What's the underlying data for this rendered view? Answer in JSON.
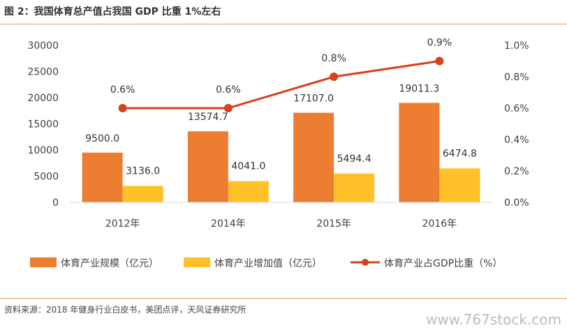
{
  "figure": {
    "title": "图 2：我国体育总产值占我国 GDP 比重 1%左右",
    "source": "资料来源：2018 年健身行业白皮书，美团点评，天风证券研究所",
    "watermark": "www.767stock.com"
  },
  "colors": {
    "bar1": "#ed7d31",
    "bar2": "#ffc02a",
    "line": "#d9401e",
    "rule": "#e2a15a"
  },
  "chart_data": {
    "type": "bar",
    "categories": [
      "2012年",
      "2014年",
      "2015年",
      "2016年"
    ],
    "series": [
      {
        "name": "体育产业规模（亿元）",
        "type": "bar",
        "axis": "left",
        "values": [
          9500.0,
          13574.7,
          17107.0,
          19011.3
        ],
        "labels": [
          "9500.0",
          "13574.7",
          "17107.0",
          "19011.3"
        ]
      },
      {
        "name": "体育产业增加值（亿元）",
        "type": "bar",
        "axis": "left",
        "values": [
          3136.0,
          4041.0,
          5494.4,
          6474.8
        ],
        "labels": [
          "3136.0",
          "4041.0",
          "5494.4",
          "6474.8"
        ]
      },
      {
        "name": "体育产业占GDP比重（%）",
        "type": "line",
        "axis": "right",
        "values": [
          0.6,
          0.6,
          0.8,
          0.9
        ],
        "labels": [
          "0.6%",
          "0.6%",
          "0.8%",
          "0.9%"
        ]
      }
    ],
    "ylim": [
      0,
      30000
    ],
    "yticks": [
      "0",
      "5000",
      "10000",
      "15000",
      "20000",
      "25000",
      "30000"
    ],
    "y2lim": [
      0,
      1.0
    ],
    "y2ticks": [
      "0.0%",
      "0.2%",
      "0.4%",
      "0.6%",
      "0.8%",
      "1.0%"
    ],
    "legend_position": "bottom",
    "grid": false
  }
}
